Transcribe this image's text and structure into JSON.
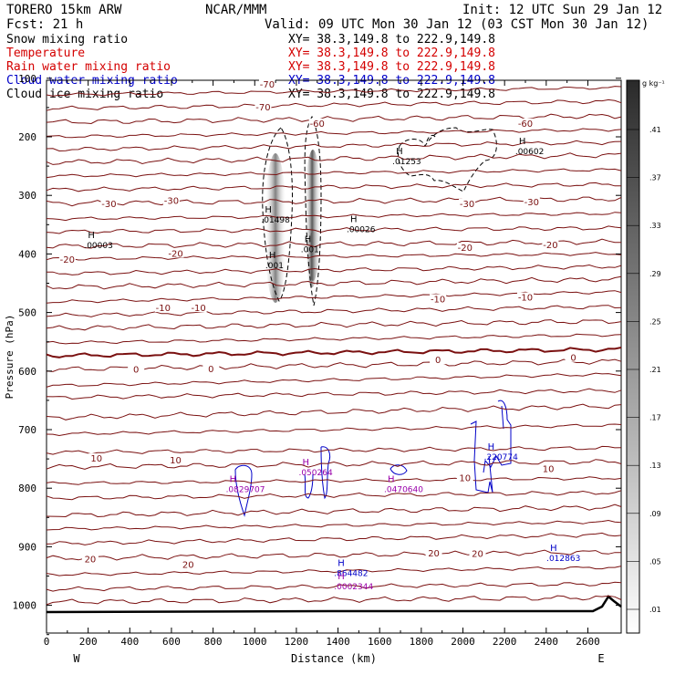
{
  "header": {
    "model": "TORERO  15km ARW",
    "center": "NCAR/MMM",
    "init": "Init: 12 UTC Sun 29 Jan 12",
    "fcst": "Fcst:   21 h",
    "valid": "Valid: 09 UTC Mon 30 Jan 12 (03 CST Mon 30 Jan 12)",
    "legend": [
      {
        "label": "Snow mixing ratio",
        "xy": "XY=  38.3,149.8 to 222.9,149.8",
        "color": "#000000"
      },
      {
        "label": "Temperature",
        "xy": "XY=  38.3,149.8 to 222.9,149.8",
        "color": "#d40000"
      },
      {
        "label": "Rain water mixing ratio",
        "xy": "XY=  38.3,149.8 to 222.9,149.8",
        "color": "#d40000"
      },
      {
        "label": "Cloud water mixing ratio",
        "xy": "XY=  38.3,149.8 to 222.9,149.8",
        "color": "#0000c8"
      },
      {
        "label": "Cloud ice mixing ratio",
        "xy": "XY=  38.3,149.8 to 222.9,149.8",
        "color": "#000000"
      }
    ]
  },
  "chart_data": {
    "type": "cross-section",
    "xlabel": "Distance (km)",
    "ylabel": "Pressure (hPa)",
    "xlim": [
      0,
      2760
    ],
    "ylim": [
      1050,
      100
    ],
    "x_ticks": [
      0,
      100,
      200,
      300,
      400,
      500,
      600,
      700,
      800,
      900,
      1000,
      1100,
      1200,
      1300,
      1400,
      1500,
      1600,
      1700,
      1800,
      1900,
      2000,
      2100,
      2200,
      2300,
      2400,
      2500,
      2600
    ],
    "x_tick_labels": [
      "0",
      "200",
      "400",
      "600",
      "800",
      "1000",
      "1200",
      "1400",
      "1600",
      "1800",
      "2000",
      "2200",
      "2400",
      "2600"
    ],
    "y_tick_labels": [
      "100",
      "200",
      "300",
      "400",
      "500",
      "600",
      "700",
      "800",
      "900",
      "1000"
    ],
    "west_label": "W",
    "east_label": "E",
    "colorbar": {
      "units": "g kg⁻¹",
      "labels": [
        ".01",
        ".05",
        ".09",
        ".13",
        ".17",
        ".21",
        ".25",
        ".29",
        ".33",
        ".37",
        ".41"
      ]
    },
    "temperature_labels": [
      {
        "text": "-70",
        "x": 1040,
        "p": 150
      },
      {
        "text": "-70",
        "x": 1060,
        "p": 111
      },
      {
        "text": "-60",
        "x": 1300,
        "p": 178
      },
      {
        "text": "-60",
        "x": 2300,
        "p": 178
      },
      {
        "text": "-30",
        "x": 300,
        "p": 315
      },
      {
        "text": "-30",
        "x": 600,
        "p": 310
      },
      {
        "text": "-30",
        "x": 2020,
        "p": 315
      },
      {
        "text": "-30",
        "x": 2330,
        "p": 312
      },
      {
        "text": "-20",
        "x": 100,
        "p": 410
      },
      {
        "text": "-20",
        "x": 620,
        "p": 400
      },
      {
        "text": "-20",
        "x": 2010,
        "p": 390
      },
      {
        "text": "-20",
        "x": 2420,
        "p": 385
      },
      {
        "text": "-10",
        "x": 560,
        "p": 493
      },
      {
        "text": "-10",
        "x": 730,
        "p": 493
      },
      {
        "text": "-10",
        "x": 1880,
        "p": 478
      },
      {
        "text": "-10",
        "x": 2300,
        "p": 475
      },
      {
        "text": "0",
        "x": 430,
        "p": 598
      },
      {
        "text": "0",
        "x": 790,
        "p": 597
      },
      {
        "text": "0",
        "x": 1880,
        "p": 582
      },
      {
        "text": "0",
        "x": 2530,
        "p": 578
      },
      {
        "text": "10",
        "x": 240,
        "p": 750
      },
      {
        "text": "10",
        "x": 620,
        "p": 753
      },
      {
        "text": "10",
        "x": 2010,
        "p": 783
      },
      {
        "text": "10",
        "x": 2410,
        "p": 768
      },
      {
        "text": "20",
        "x": 210,
        "p": 922
      },
      {
        "text": "20",
        "x": 680,
        "p": 931
      },
      {
        "text": "20",
        "x": 1860,
        "p": 912
      },
      {
        "text": "20",
        "x": 2070,
        "p": 913
      }
    ],
    "maxima": [
      {
        "text": ".00003",
        "x": 260,
        "p": 385,
        "color": "#000000"
      },
      {
        "text": ".01498",
        "x": 1110,
        "p": 342,
        "color": "#000000"
      },
      {
        "text": ".001",
        "x": 1130,
        "p": 420,
        "color": "#000000"
      },
      {
        "text": ".001",
        "x": 1300,
        "p": 392,
        "color": "#000000"
      },
      {
        "text": ".00026",
        "x": 1520,
        "p": 358,
        "color": "#000000"
      },
      {
        "text": ".01253",
        "x": 1740,
        "p": 242,
        "color": "#000000"
      },
      {
        "text": ".00602",
        "x": 2330,
        "p": 225,
        "color": "#000000"
      },
      {
        "text": ".220774",
        "x": 2180,
        "p": 747,
        "color": "#0000c8"
      },
      {
        "text": ".0829707",
        "x": 940,
        "p": 802,
        "color": "#9900aa"
      },
      {
        "text": ".050264",
        "x": 1290,
        "p": 773,
        "color": "#9900aa"
      },
      {
        "text": ".0470640",
        "x": 1700,
        "p": 802,
        "color": "#9900aa"
      },
      {
        "text": ".864482",
        "x": 1460,
        "p": 945,
        "color": "#0000c8"
      },
      {
        "text": ".0002344",
        "x": 1460,
        "p": 968,
        "color": "#9900aa"
      },
      {
        "text": ".012863",
        "x": 2480,
        "p": 920,
        "color": "#0000c8"
      }
    ]
  }
}
